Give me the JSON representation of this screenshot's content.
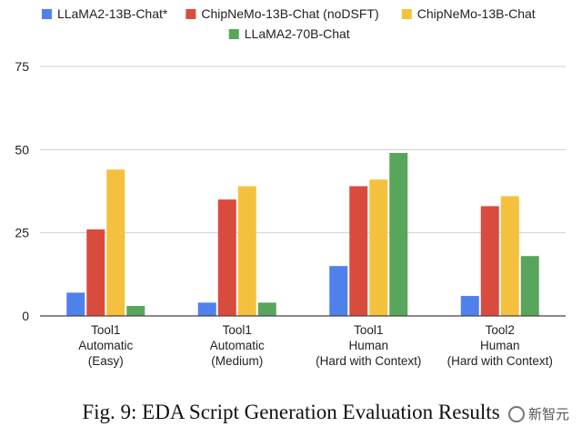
{
  "chart_data": {
    "type": "bar",
    "title": "",
    "xlabel": "",
    "ylabel": "",
    "ylim": [
      0,
      75
    ],
    "yticks": [
      0,
      25,
      50,
      75
    ],
    "grid": true,
    "legend_position": "top",
    "categories": [
      [
        "Tool1",
        "Automatic",
        "(Easy)"
      ],
      [
        "Tool1",
        "Automatic",
        "(Medium)"
      ],
      [
        "Tool1",
        "Human",
        "(Hard with Context)"
      ],
      [
        "Tool2",
        "Human",
        "(Hard with Context)"
      ]
    ],
    "series": [
      {
        "name": "LLaMA2-13B-Chat*",
        "color": "#4f81ec",
        "values": [
          7,
          4,
          15,
          6
        ]
      },
      {
        "name": "ChipNeMo-13B-Chat (noDSFT)",
        "color": "#d94c3d",
        "values": [
          26,
          35,
          39,
          33
        ]
      },
      {
        "name": "ChipNeMo-13B-Chat",
        "color": "#f4c13e",
        "values": [
          44,
          39,
          41,
          36
        ]
      },
      {
        "name": "LLaMA2-70B-Chat",
        "color": "#58a55c",
        "values": [
          3,
          4,
          49,
          18
        ]
      }
    ]
  },
  "caption": "Fig. 9: EDA Script Generation Evaluation Results",
  "watermark": "新智元"
}
